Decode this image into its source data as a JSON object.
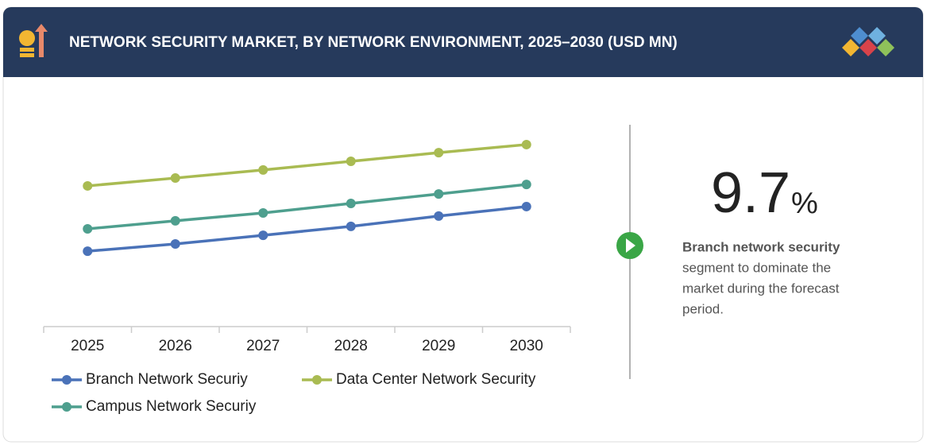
{
  "chart_data": {
    "type": "line",
    "title": "NETWORK SECURITY MARKET, BY NETWORK ENVIRONMENT, 2025–2030 (USD MN)",
    "categories": [
      "2025",
      "2026",
      "2027",
      "2028",
      "2029",
      "2030"
    ],
    "series": [
      {
        "name": "Branch Network Securiy",
        "color": "#4a72b8",
        "values": [
          36.5,
          40,
          44.2,
          48.5,
          53.5,
          58.1
        ]
      },
      {
        "name": "Data Center Network Security",
        "color": "#a9bb52",
        "values": [
          68.1,
          71.9,
          75.8,
          80,
          84.2,
          88.1
        ]
      },
      {
        "name": "Campus Network Securiy",
        "color": "#4e9f8e",
        "values": [
          47.3,
          51.2,
          55,
          59.6,
          64.2,
          68.8
        ]
      }
    ],
    "ylim": [
      0,
      100
    ],
    "grid": false
  },
  "highlight": {
    "value": "9.7",
    "unit": "%",
    "lines": [
      "Branch network security",
      "segment to dominate the",
      "market during the forecast",
      "period."
    ]
  }
}
